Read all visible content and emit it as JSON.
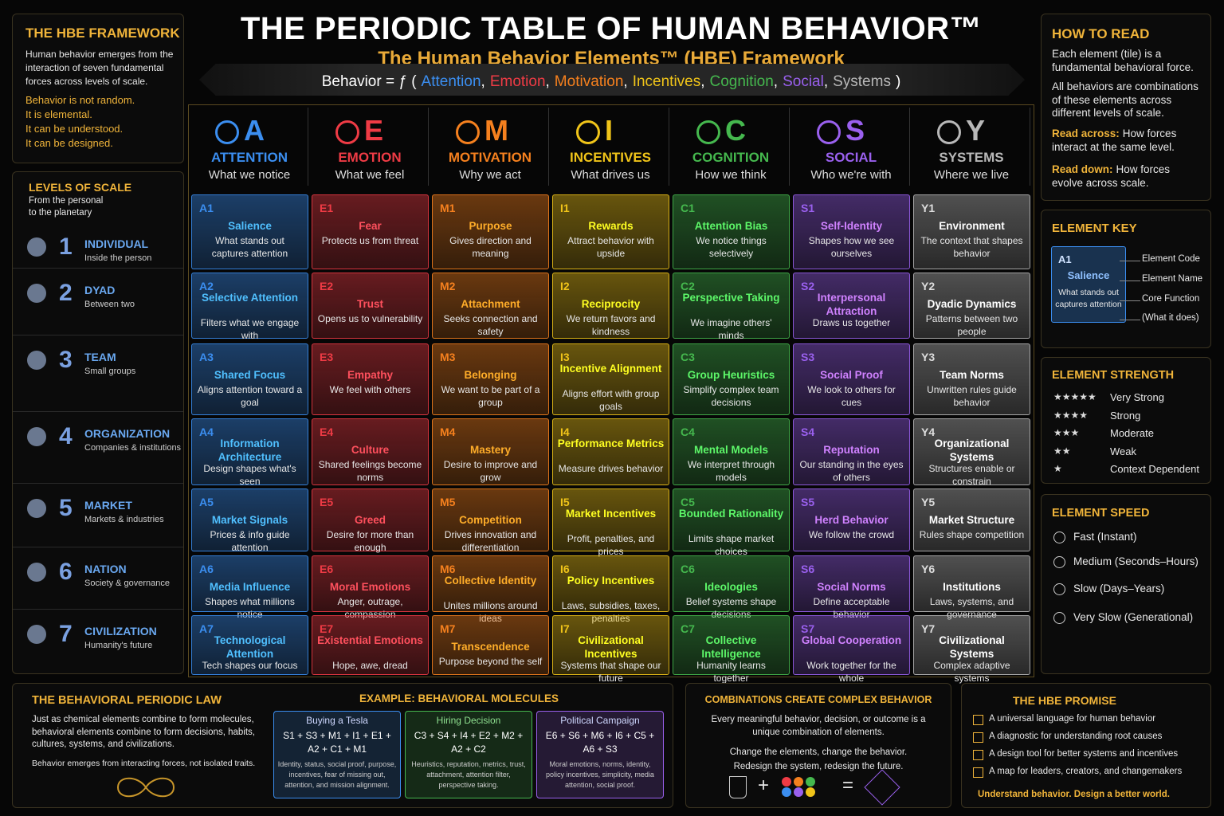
{
  "header": {
    "title": "THE PERIODIC TABLE OF HUMAN BEHAVIOR™",
    "subtitle": "The Human Behavior Elements™ (HBE) Framework",
    "formula_prefix": "Behavior = ƒ (",
    "formula_separator": ",",
    "formula_suffix": ")",
    "formula_terms": [
      "Attention",
      "Emotion",
      "Motivation",
      "Incentives",
      "Cognition",
      "Social",
      "Systems"
    ]
  },
  "framework": {
    "title": "THE HBE FRAMEWORK",
    "intro": "Human behavior emerges from the interaction of seven fundamental forces across levels of scale.",
    "lines": [
      "Behavior is not random.",
      "It is elemental.",
      "It can be understood.",
      "It can be designed."
    ]
  },
  "levels": {
    "title": "LEVELS OF SCALE",
    "subtitle": "From the personal to the planetary",
    "items": [
      {
        "number": "1",
        "name": "INDIVIDUAL",
        "desc": "Inside the person"
      },
      {
        "number": "2",
        "name": "DYAD",
        "desc": "Between two"
      },
      {
        "number": "3",
        "name": "TEAM",
        "desc": "Small groups"
      },
      {
        "number": "4",
        "name": "ORGANIZATION",
        "desc": "Companies & institutions"
      },
      {
        "number": "5",
        "name": "MARKET",
        "desc": "Markets & industries"
      },
      {
        "number": "6",
        "name": "NATION",
        "desc": "Society & governance"
      },
      {
        "number": "7",
        "name": "CIVILIZATION",
        "desc": "Humanity's future"
      }
    ]
  },
  "columns": [
    {
      "letter": "A",
      "name": "ATTENTION",
      "desc": "What we notice",
      "color": "#3b8ef0"
    },
    {
      "letter": "E",
      "name": "EMOTION",
      "desc": "What we feel",
      "color": "#ef3b45"
    },
    {
      "letter": "M",
      "name": "MOTIVATION",
      "desc": "Why we act",
      "color": "#f5801e"
    },
    {
      "letter": "I",
      "name": "INCENTIVES",
      "desc": "What drives us",
      "color": "#f0c419"
    },
    {
      "letter": "C",
      "name": "COGNITION",
      "desc": "How we think",
      "color": "#45b84e"
    },
    {
      "letter": "S",
      "name": "SOCIAL",
      "desc": "Who we're with",
      "color": "#9a60ee"
    },
    {
      "letter": "Y",
      "name": "SYSTEMS",
      "desc": "Where we live",
      "color": "#b8b8b8"
    }
  ],
  "elements": [
    [
      {
        "code": "A1",
        "name": "Salience",
        "desc": "What stands out captures attention"
      },
      {
        "code": "A2",
        "name": "Selective Attention",
        "desc": "Filters what we engage with"
      },
      {
        "code": "A3",
        "name": "Shared Focus",
        "desc": "Aligns attention toward a goal"
      },
      {
        "code": "A4",
        "name": "Information Architecture",
        "desc": "Design shapes what's seen"
      },
      {
        "code": "A5",
        "name": "Market Signals",
        "desc": "Prices & info guide attention"
      },
      {
        "code": "A6",
        "name": "Media Influence",
        "desc": "Shapes what millions notice"
      },
      {
        "code": "A7",
        "name": "Technological Attention",
        "desc": "Tech shapes our focus"
      }
    ],
    [
      {
        "code": "E1",
        "name": "Fear",
        "desc": "Protects us from threat"
      },
      {
        "code": "E2",
        "name": "Trust",
        "desc": "Opens us to vulnerability"
      },
      {
        "code": "E3",
        "name": "Empathy",
        "desc": "We feel with others"
      },
      {
        "code": "E4",
        "name": "Culture",
        "desc": "Shared feelings become norms"
      },
      {
        "code": "E5",
        "name": "Greed",
        "desc": "Desire for more than enough"
      },
      {
        "code": "E6",
        "name": "Moral Emotions",
        "desc": "Anger, outrage, compassion"
      },
      {
        "code": "E7",
        "name": "Existential Emotions",
        "desc": "Hope, awe, dread"
      }
    ],
    [
      {
        "code": "M1",
        "name": "Purpose",
        "desc": "Gives direction and meaning"
      },
      {
        "code": "M2",
        "name": "Attachment",
        "desc": "Seeks connection and safety"
      },
      {
        "code": "M3",
        "name": "Belonging",
        "desc": "We want to be part of a group"
      },
      {
        "code": "M4",
        "name": "Mastery",
        "desc": "Desire to improve and grow"
      },
      {
        "code": "M5",
        "name": "Competition",
        "desc": "Drives innovation and differentiation"
      },
      {
        "code": "M6",
        "name": "Collective Identity",
        "desc": "Unites millions around ideas"
      },
      {
        "code": "M7",
        "name": "Transcendence",
        "desc": "Purpose beyond the self"
      }
    ],
    [
      {
        "code": "I1",
        "name": "Rewards",
        "desc": "Attract behavior with upside"
      },
      {
        "code": "I2",
        "name": "Reciprocity",
        "desc": "We return favors and kindness"
      },
      {
        "code": "I3",
        "name": "Incentive Alignment",
        "desc": "Aligns effort with group goals"
      },
      {
        "code": "I4",
        "name": "Performance Metrics",
        "desc": "Measure drives behavior"
      },
      {
        "code": "I5",
        "name": "Market Incentives",
        "desc": "Profit, penalties, and prices"
      },
      {
        "code": "I6",
        "name": "Policy Incentives",
        "desc": "Laws, subsidies, taxes, penalties"
      },
      {
        "code": "I7",
        "name": "Civilizational Incentives",
        "desc": "Systems that shape our future"
      }
    ],
    [
      {
        "code": "C1",
        "name": "Attention Bias",
        "desc": "We notice things selectively"
      },
      {
        "code": "C2",
        "name": "Perspective Taking",
        "desc": "We imagine others' minds"
      },
      {
        "code": "C3",
        "name": "Group Heuristics",
        "desc": "Simplify complex team decisions"
      },
      {
        "code": "C4",
        "name": "Mental Models",
        "desc": "We interpret through models"
      },
      {
        "code": "C5",
        "name": "Bounded Rationality",
        "desc": "Limits shape market choices"
      },
      {
        "code": "C6",
        "name": "Ideologies",
        "desc": "Belief systems shape decisions"
      },
      {
        "code": "C7",
        "name": "Collective Intelligence",
        "desc": "Humanity learns together"
      }
    ],
    [
      {
        "code": "S1",
        "name": "Self-Identity",
        "desc": "Shapes how we see ourselves"
      },
      {
        "code": "S2",
        "name": "Interpersonal Attraction",
        "desc": "Draws us together"
      },
      {
        "code": "S3",
        "name": "Social Proof",
        "desc": "We look to others for cues"
      },
      {
        "code": "S4",
        "name": "Reputation",
        "desc": "Our standing in the eyes of others"
      },
      {
        "code": "S5",
        "name": "Herd Behavior",
        "desc": "We follow the crowd"
      },
      {
        "code": "S6",
        "name": "Social Norms",
        "desc": "Define acceptable behavior"
      },
      {
        "code": "S7",
        "name": "Global Cooperation",
        "desc": "Work together for the whole"
      }
    ],
    [
      {
        "code": "Y1",
        "name": "Environment",
        "desc": "The context that shapes behavior"
      },
      {
        "code": "Y2",
        "name": "Dyadic Dynamics",
        "desc": "Patterns between two people"
      },
      {
        "code": "Y3",
        "name": "Team Norms",
        "desc": "Unwritten rules guide behavior"
      },
      {
        "code": "Y4",
        "name": "Organizational Systems",
        "desc": "Structures enable or constrain"
      },
      {
        "code": "Y5",
        "name": "Market Structure",
        "desc": "Rules shape competition"
      },
      {
        "code": "Y6",
        "name": "Institutions",
        "desc": "Laws, systems, and governance"
      },
      {
        "code": "Y7",
        "name": "Civilizational Systems",
        "desc": "Complex adaptive systems"
      }
    ]
  ],
  "how_to_read": {
    "title": "HOW TO READ",
    "paragraphs": [
      "Each element (tile) is a fundamental behavioral force.",
      "All behaviors are combinations of these elements across different levels of scale."
    ],
    "items": [
      {
        "label": "Read across:",
        "text": "How forces interact at the same level."
      },
      {
        "label": "Read down:",
        "text": "How forces evolve across scale."
      }
    ]
  },
  "element_key": {
    "title": "ELEMENT KEY",
    "code": "A1",
    "name": "Salience",
    "desc": "What stands out captures attention",
    "labels": [
      "Element Code",
      "Element Name",
      "Core Function",
      "(What it does)"
    ]
  },
  "strength": {
    "title": "ELEMENT STRENGTH",
    "items": [
      {
        "stars": "★★★★★",
        "label": "Very Strong"
      },
      {
        "stars": "★★★★",
        "label": "Strong"
      },
      {
        "stars": "★★★",
        "label": "Moderate"
      },
      {
        "stars": "★★",
        "label": "Weak"
      },
      {
        "stars": "★",
        "label": "Context Dependent"
      }
    ]
  },
  "speed": {
    "title": "ELEMENT SPEED",
    "items": [
      "Fast (Instant)",
      "Medium (Seconds–Hours)",
      "Slow (Days–Years)",
      "Very Slow (Generational)"
    ]
  },
  "law": {
    "title": "THE BEHAVIORAL PERIODIC LAW",
    "text": "Just as chemical elements combine to form molecules, behavioral elements combine to form decisions, habits, cultures, systems, and civilizations.",
    "note": "Behavior emerges from interacting forces, not isolated traits."
  },
  "molecules": {
    "title": "EXAMPLE: BEHAVIORAL MOLECULES",
    "items": [
      {
        "name": "Buying a Tesla",
        "formula": "S1 + S3 + M1 + I1 + E1 + A2 + C1 + M1",
        "desc": "Identity, status, social proof, purpose, incentives, fear of missing out, attention, and mission alignment."
      },
      {
        "name": "Hiring Decision",
        "formula": "C3 + S4 + I4 + E2 + M2 + A2 + C2",
        "desc": "Heuristics, reputation, metrics, trust, attachment, attention filter, perspective taking."
      },
      {
        "name": "Political Campaign",
        "formula": "E6 + S6 + M6 + I6 + C5 + A6 + S3",
        "desc": "Moral emotions, norms, identity, policy incentives, simplicity, media attention, social proof."
      }
    ]
  },
  "combinations": {
    "title": "COMBINATIONS CREATE COMPLEX BEHAVIOR",
    "lines": [
      "Every meaningful behavior, decision, or outcome is a unique combination of elements.",
      "Change the elements, change the behavior.",
      "Redesign the system, redesign the future."
    ],
    "plus": "+",
    "equals": "="
  },
  "promise": {
    "title": "THE HBE PROMISE",
    "items": [
      "A universal language for human behavior",
      "A diagnostic for understanding root causes",
      "A design tool for better systems and incentives",
      "A map for leaders, creators, and changemakers"
    ],
    "tagline": "Understand behavior. Design a better world."
  }
}
